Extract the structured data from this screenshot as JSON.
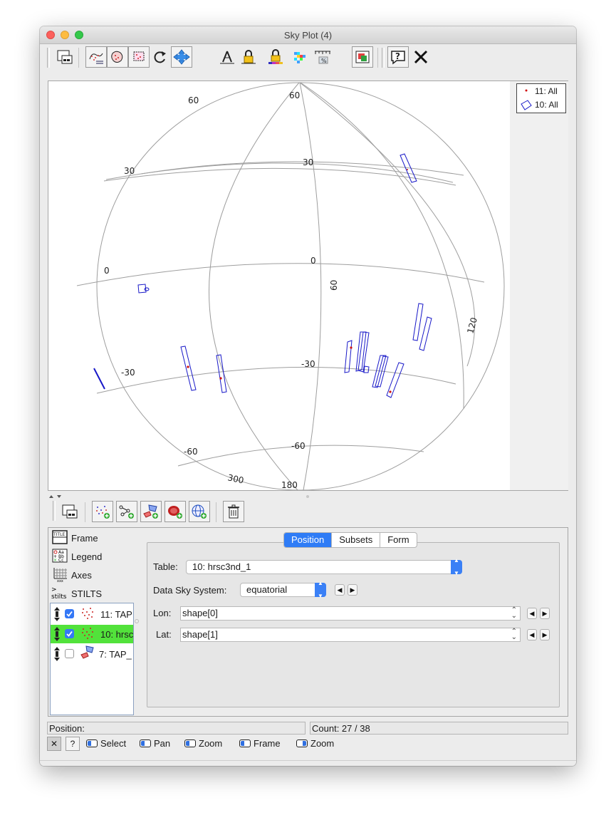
{
  "window": {
    "title": "Sky Plot (4)"
  },
  "plot": {
    "lat_labels": [
      "60",
      "60",
      "30",
      "30",
      "0",
      "0",
      "-30",
      "-30",
      "-60",
      "-60"
    ],
    "lon_labels": [
      "60",
      "120",
      "300",
      "180"
    ]
  },
  "legend": [
    {
      "label": "11: All"
    },
    {
      "label": "10: All"
    }
  ],
  "config_items": [
    {
      "label": "Frame",
      "icon": "frame-icon"
    },
    {
      "label": "Legend",
      "icon": "legend-icon"
    },
    {
      "label": "Axes",
      "icon": "axes-icon"
    },
    {
      "label": "STILTS",
      "icon": "stilts-icon"
    }
  ],
  "layers": [
    {
      "label": "11: TAP",
      "checked": true,
      "selected": false
    },
    {
      "label": "10: hrsc",
      "checked": true,
      "selected": true
    },
    {
      "label": "7: TAP_",
      "checked": false,
      "selected": false
    }
  ],
  "tabs": [
    {
      "label": "Position",
      "active": true
    },
    {
      "label": "Subsets",
      "active": false
    },
    {
      "label": "Form",
      "active": false
    }
  ],
  "form": {
    "table_label": "Table:",
    "table_value": "10: hrsc3nd_1",
    "skysys_label": "Data Sky System:",
    "skysys_value": "equatorial",
    "lon_label": "Lon:",
    "lon_value": "shape[0]",
    "lat_label": "Lat:",
    "lat_value": "shape[1]"
  },
  "status": {
    "position": "Position:",
    "count": "Count: 27 / 38"
  },
  "hints": [
    {
      "label": "Select"
    },
    {
      "label": "Pan"
    },
    {
      "label": "Zoom"
    },
    {
      "label": "Frame"
    },
    {
      "label": "Zoom"
    }
  ],
  "hint_buttons": {
    "close": "✕",
    "help": "?"
  },
  "colors": {
    "selected_layer": "#52e23b",
    "accent": "#2f7cf6",
    "shape_outline": "#1010c0",
    "point": "#d01010"
  }
}
